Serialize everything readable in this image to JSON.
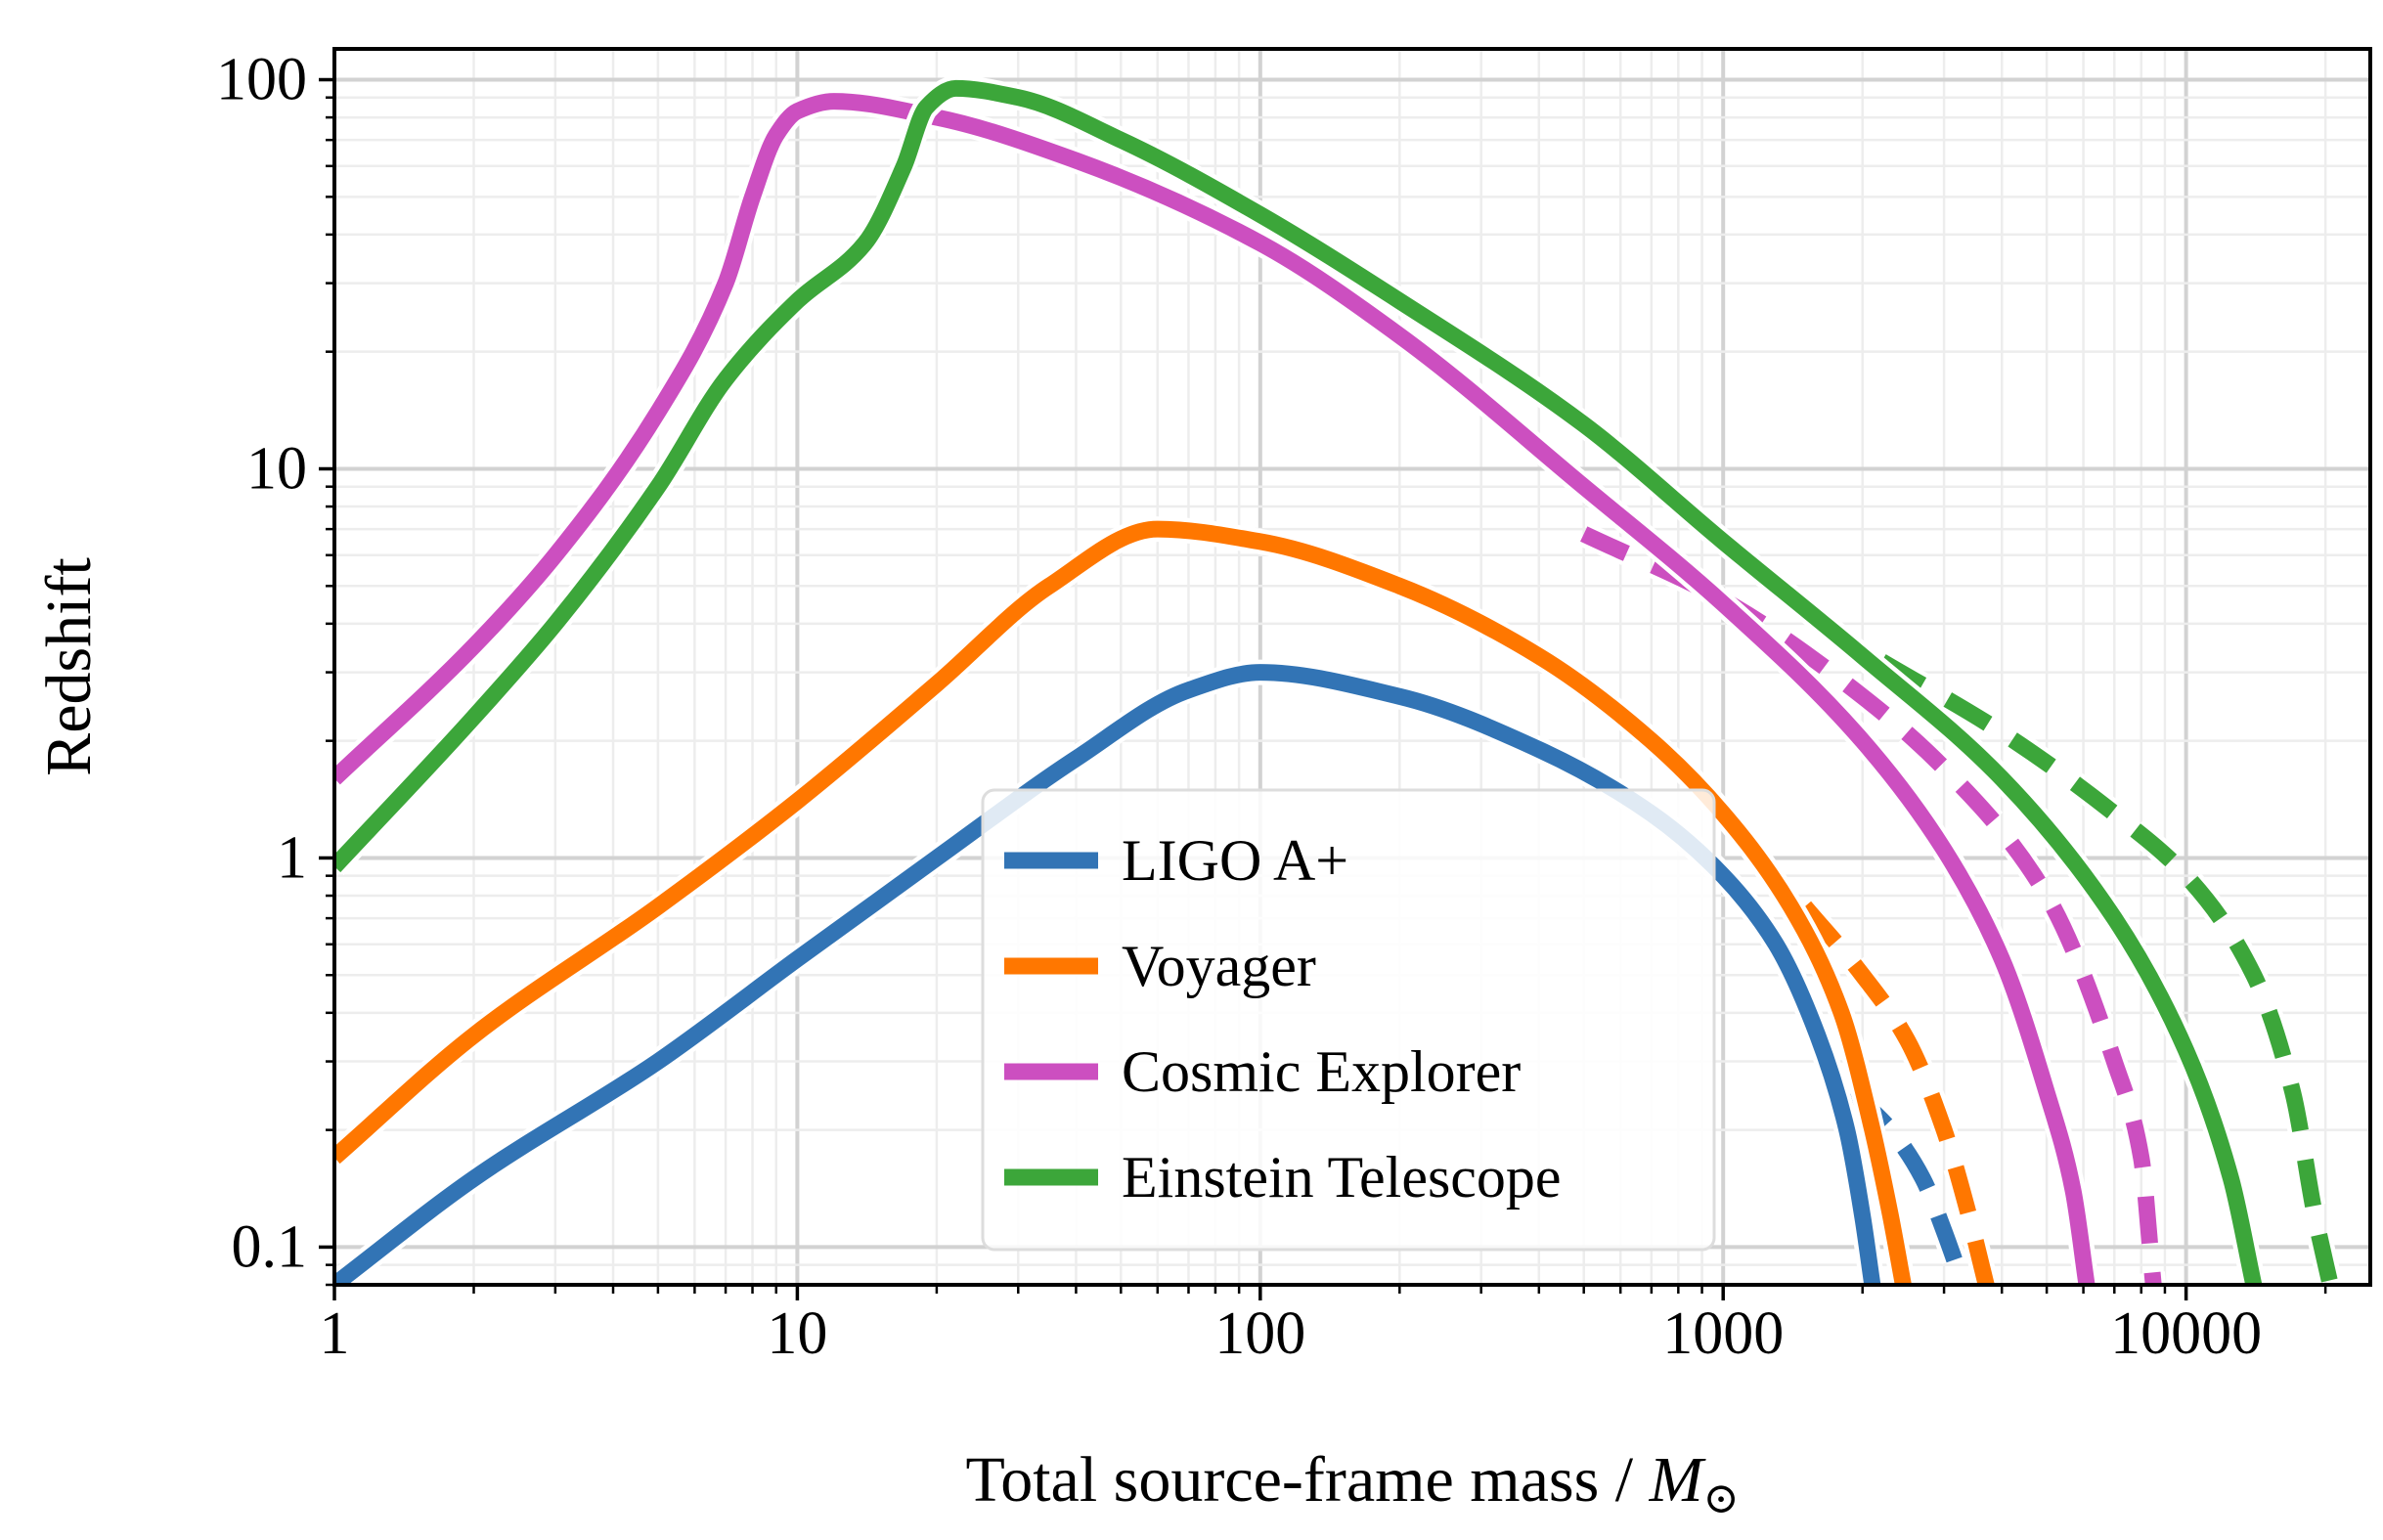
{
  "chart_data": {
    "type": "line",
    "scale": {
      "x": "log",
      "y": "log"
    },
    "xlim": [
      1,
      25000
    ],
    "ylim": [
      0.08,
      120
    ],
    "xlabel": "Total source-frame mass / ",
    "xlabel_symbol": "M",
    "xlabel_sub": "⊙",
    "ylabel": "Redshift",
    "grid": true,
    "x_ticks": [
      {
        "v": 1,
        "label": "1"
      },
      {
        "v": 10,
        "label": "10"
      },
      {
        "v": 100,
        "label": "100"
      },
      {
        "v": 1000,
        "label": "1000"
      },
      {
        "v": 10000,
        "label": "10000"
      }
    ],
    "y_ticks": [
      {
        "v": 0.1,
        "label": "0.1"
      },
      {
        "v": 1,
        "label": "1"
      },
      {
        "v": 10,
        "label": "10"
      },
      {
        "v": 100,
        "label": "100"
      }
    ],
    "legend_position": "lower-center",
    "series": [
      {
        "name": "LIGO A+",
        "color": "#3274b5",
        "in_legend": true,
        "solid": [
          [
            1,
            0.08
          ],
          [
            2,
            0.15
          ],
          [
            5,
            0.3
          ],
          [
            10,
            0.55
          ],
          [
            20,
            1.0
          ],
          [
            40,
            1.8
          ],
          [
            70,
            2.7
          ],
          [
            100,
            3.0
          ],
          [
            200,
            2.6
          ],
          [
            400,
            1.9
          ],
          [
            700,
            1.3
          ],
          [
            1000,
            0.9
          ],
          [
            1300,
            0.6
          ],
          [
            1600,
            0.35
          ],
          [
            1850,
            0.2
          ],
          [
            2000,
            0.12
          ],
          [
            2100,
            0.08
          ]
        ],
        "dashed": [
          [
            1900,
            0.25
          ],
          [
            2300,
            0.2
          ],
          [
            2700,
            0.15
          ],
          [
            3000,
            0.11
          ],
          [
            3300,
            0.08
          ]
        ]
      },
      {
        "name": "Voyager",
        "color": "#ff7700",
        "in_legend": true,
        "solid": [
          [
            1,
            0.17
          ],
          [
            2,
            0.35
          ],
          [
            5,
            0.75
          ],
          [
            10,
            1.4
          ],
          [
            20,
            2.8
          ],
          [
            35,
            5.0
          ],
          [
            60,
            7.0
          ],
          [
            100,
            6.5
          ],
          [
            200,
            5.0
          ],
          [
            400,
            3.3
          ],
          [
            700,
            2.0
          ],
          [
            1000,
            1.3
          ],
          [
            1400,
            0.75
          ],
          [
            1800,
            0.4
          ],
          [
            2100,
            0.2
          ],
          [
            2300,
            0.12
          ],
          [
            2450,
            0.08
          ]
        ],
        "dashed": [
          [
            1500,
            0.75
          ],
          [
            2000,
            0.5
          ],
          [
            2500,
            0.34
          ],
          [
            3000,
            0.2
          ],
          [
            3400,
            0.12
          ],
          [
            3700,
            0.08
          ]
        ]
      },
      {
        "name": "Cosmic Explorer",
        "color": "#cc4fc0",
        "in_legend": true,
        "solid": [
          [
            1,
            1.6
          ],
          [
            2,
            3.5
          ],
          [
            3,
            6.0
          ],
          [
            5,
            14
          ],
          [
            7,
            30
          ],
          [
            8,
            50
          ],
          [
            9,
            72
          ],
          [
            10,
            83
          ],
          [
            12,
            88
          ],
          [
            20,
            80
          ],
          [
            40,
            62
          ],
          [
            100,
            38
          ],
          [
            200,
            22
          ],
          [
            500,
            9.0
          ],
          [
            1000,
            4.5
          ],
          [
            2000,
            2.0
          ],
          [
            3000,
            1.05
          ],
          [
            4000,
            0.55
          ],
          [
            5000,
            0.25
          ],
          [
            5700,
            0.14
          ],
          [
            6100,
            0.08
          ]
        ],
        "dashed": [
          [
            500,
            6.8
          ],
          [
            1000,
            4.6
          ],
          [
            2000,
            2.6
          ],
          [
            3000,
            1.7
          ],
          [
            5000,
            0.8
          ],
          [
            7000,
            0.3
          ],
          [
            8000,
            0.17
          ],
          [
            8500,
            0.08
          ]
        ]
      },
      {
        "name": "Einstein Telescope",
        "color": "#3ca63a",
        "in_legend": true,
        "solid": [
          [
            1,
            0.95
          ],
          [
            2,
            2.3
          ],
          [
            3,
            4.0
          ],
          [
            5,
            9.0
          ],
          [
            7,
            17
          ],
          [
            10,
            27
          ],
          [
            14,
            38
          ],
          [
            17,
            60
          ],
          [
            19,
            85
          ],
          [
            22,
            95
          ],
          [
            30,
            90
          ],
          [
            50,
            70
          ],
          [
            100,
            45
          ],
          [
            200,
            27
          ],
          [
            500,
            13
          ],
          [
            1000,
            6.5
          ],
          [
            2000,
            3.3
          ],
          [
            4000,
            1.6
          ],
          [
            7000,
            0.7
          ],
          [
            10000,
            0.32
          ],
          [
            12500,
            0.15
          ],
          [
            14000,
            0.08
          ]
        ],
        "dashed": [
          [
            2200,
            3.2
          ],
          [
            4000,
            2.1
          ],
          [
            7000,
            1.3
          ],
          [
            10000,
            0.9
          ],
          [
            14000,
            0.5
          ],
          [
            17000,
            0.25
          ],
          [
            19000,
            0.12
          ],
          [
            20500,
            0.08
          ]
        ]
      }
    ]
  }
}
